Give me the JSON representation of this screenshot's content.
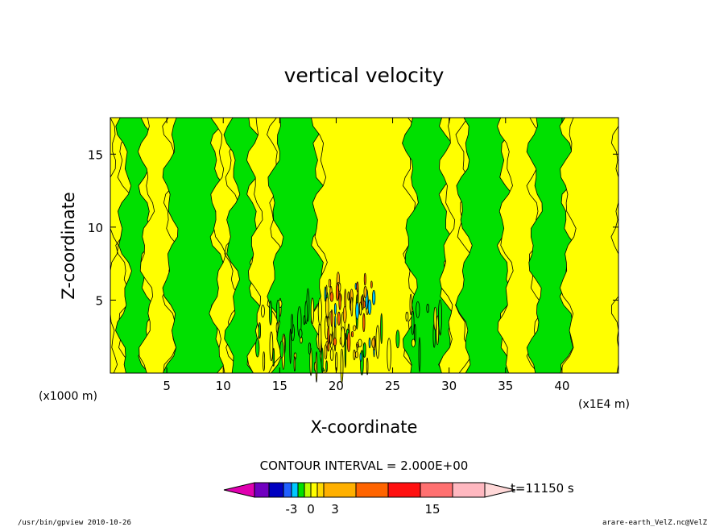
{
  "chart_data": {
    "type": "heatmap",
    "title": "vertical velocity",
    "xlabel": "X-coordinate",
    "ylabel": "Z-coordinate",
    "x_unit_label": "(x1000 m)",
    "x_multiplier_label": "(x1E4 m)",
    "xlim": [
      0,
      45
    ],
    "ylim": [
      0,
      17.5
    ],
    "xticks": [
      5,
      10,
      15,
      20,
      25,
      30,
      35,
      40
    ],
    "yticks": [
      5,
      10,
      15
    ],
    "contour_interval_label": "CONTOUR INTERVAL = 2.000E+00",
    "time_label": "t=11150 s",
    "colorbar": {
      "colors": [
        "#e000b0",
        "#7000c0",
        "#0000c0",
        "#2060ff",
        "#00c8ff",
        "#00e000",
        "#b8ff00",
        "#ffff00",
        "#ffd800",
        "#ffb000",
        "#ff6400",
        "#ff1010",
        "#ff7070",
        "#ffb8c0",
        "#ffd8d8"
      ],
      "tick_labels": [
        "-3",
        "0",
        "3",
        "15"
      ],
      "tick_values": [
        -3,
        0,
        3,
        15
      ]
    },
    "regions": [
      {
        "x": [
          0,
          1.2
        ],
        "value": 1,
        "color": "#ffff00"
      },
      {
        "x": [
          1.2,
          3.2
        ],
        "value": -1,
        "color": "#00e000"
      },
      {
        "x": [
          3.2,
          5.3
        ],
        "value": 1,
        "color": "#ffff00"
      },
      {
        "x": [
          5.3,
          9.5
        ],
        "value": -1,
        "color": "#00e000"
      },
      {
        "x": [
          9.5,
          10.8
        ],
        "value": 1,
        "color": "#ffff00"
      },
      {
        "x": [
          10.8,
          12.8
        ],
        "value": -1,
        "color": "#00e000"
      },
      {
        "x": [
          12.8,
          14.6
        ],
        "value": 1,
        "color": "#ffff00"
      },
      {
        "x": [
          14.6,
          18.5
        ],
        "value": -1,
        "color": "#00e000"
      },
      {
        "x": [
          18.5,
          26.6
        ],
        "value": 1,
        "color": "#ffff00"
      },
      {
        "x": [
          26.6,
          29.8
        ],
        "value": -1,
        "color": "#00e000"
      },
      {
        "x": [
          29.8,
          31.3
        ],
        "value": 1,
        "color": "#ffff00"
      },
      {
        "x": [
          31.3,
          35
        ],
        "value": -1,
        "color": "#00e000"
      },
      {
        "x": [
          35,
          37.6
        ],
        "value": 1,
        "color": "#ffff00"
      },
      {
        "x": [
          37.6,
          40.5
        ],
        "value": -1,
        "color": "#00e000"
      },
      {
        "x": [
          40.5,
          45
        ],
        "value": 1,
        "color": "#ffff00"
      }
    ],
    "strong_updraft": {
      "x": [
        19,
        23.5
      ],
      "z": [
        1,
        7
      ],
      "max_value": 15
    }
  },
  "footer": {
    "left": "/usr/bin/gpview   2010-10-26",
    "right": "arare-earth_VelZ.nc@VelZ"
  }
}
